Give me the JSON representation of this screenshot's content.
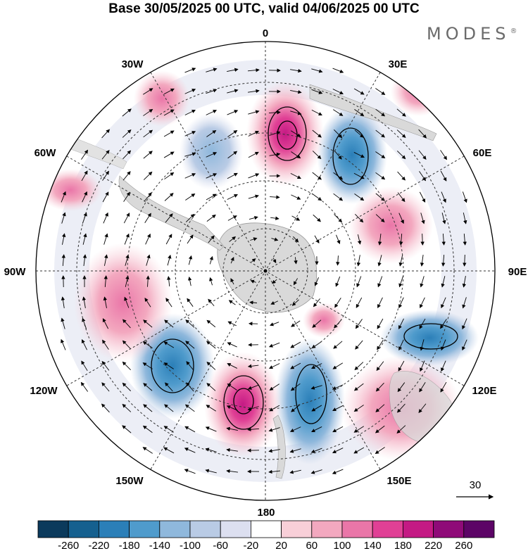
{
  "title": "Base 30/05/2025 00 UTC, valid 04/06/2025 00 UTC",
  "brand": {
    "name": "MODES",
    "mark": "®"
  },
  "map": {
    "projection": "south-polar-stereographic",
    "longitude_labels": [
      "0",
      "30E",
      "60E",
      "90E",
      "120E",
      "150E",
      "180",
      "150W",
      "120W",
      "90W",
      "60W",
      "30W"
    ]
  },
  "vector_reference": {
    "value": "30"
  },
  "colorbar": {
    "tick_labels": [
      "-260",
      "-220",
      "-180",
      "-140",
      "-100",
      "-60",
      "-20",
      "20",
      "60",
      "100",
      "140",
      "180",
      "220",
      "260"
    ],
    "colors": [
      "#0b3a5c",
      "#15608f",
      "#2b7fb8",
      "#4f9bcc",
      "#8fb8dc",
      "#b9cbe5",
      "#dcdff0",
      "#ffffff",
      "#f8cfd8",
      "#f3a8bf",
      "#ea76a8",
      "#e04095",
      "#c41a84",
      "#8f0a78",
      "#5c0466"
    ]
  }
}
